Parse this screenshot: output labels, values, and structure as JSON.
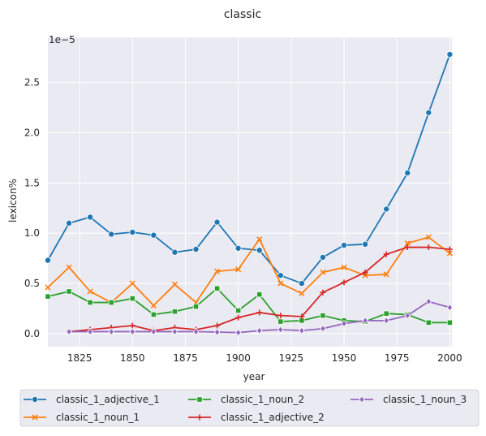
{
  "chart_data": {
    "type": "line",
    "title": "classic",
    "xlabel": "year",
    "ylabel": "lexicon%",
    "y_scale_label": "1e−5",
    "xlim": [
      1810,
      2001
    ],
    "ylim": [
      -0.13,
      2.95
    ],
    "x_ticks": [
      1825,
      1850,
      1875,
      1900,
      1925,
      1950,
      1975,
      2000
    ],
    "y_ticks": [
      0.0,
      0.5,
      1.0,
      1.5,
      2.0,
      2.5
    ],
    "y_tick_labels": [
      "0.0",
      "0.5",
      "1.0",
      "1.5",
      "2.0",
      "2.5"
    ],
    "grid": true,
    "legend_placement": "below",
    "series": [
      {
        "name": "classic_1_adjective_1",
        "color": "#1f77b4",
        "marker": "circle",
        "x": [
          1810,
          1820,
          1830,
          1840,
          1850,
          1860,
          1870,
          1880,
          1890,
          1900,
          1910,
          1920,
          1930,
          1940,
          1950,
          1960,
          1970,
          1980,
          1990,
          2000
        ],
        "values": [
          0.73,
          1.1,
          1.16,
          0.99,
          1.01,
          0.98,
          0.81,
          0.84,
          1.11,
          0.85,
          0.83,
          0.58,
          0.5,
          0.76,
          0.88,
          0.89,
          1.24,
          1.6,
          2.2,
          2.78
        ]
      },
      {
        "name": "classic_1_noun_1",
        "color": "#ff7f0e",
        "marker": "x",
        "x": [
          1810,
          1820,
          1830,
          1840,
          1850,
          1860,
          1870,
          1880,
          1890,
          1900,
          1910,
          1920,
          1930,
          1940,
          1950,
          1960,
          1970,
          1980,
          1990,
          2000
        ],
        "values": [
          0.46,
          0.66,
          0.42,
          0.31,
          0.5,
          0.28,
          0.49,
          0.31,
          0.62,
          0.64,
          0.94,
          0.5,
          0.4,
          0.61,
          0.66,
          0.58,
          0.59,
          0.9,
          0.96,
          0.8
        ]
      },
      {
        "name": "classic_1_noun_2",
        "color": "#2ca02c",
        "marker": "square",
        "x": [
          1810,
          1820,
          1830,
          1840,
          1850,
          1860,
          1870,
          1880,
          1890,
          1900,
          1910,
          1920,
          1930,
          1940,
          1950,
          1960,
          1970,
          1980,
          1990,
          2000
        ],
        "values": [
          0.37,
          0.42,
          0.31,
          0.31,
          0.35,
          0.19,
          0.22,
          0.27,
          0.45,
          0.23,
          0.39,
          0.12,
          0.13,
          0.18,
          0.13,
          0.12,
          0.2,
          0.19,
          0.11,
          0.11
        ]
      },
      {
        "name": "classic_1_adjective_2",
        "color": "#d62728",
        "marker": "plus",
        "x": [
          1820,
          1830,
          1840,
          1850,
          1860,
          1870,
          1880,
          1890,
          1900,
          1910,
          1920,
          1930,
          1940,
          1950,
          1960,
          1970,
          1980,
          1990,
          2000
        ],
        "values": [
          0.02,
          0.04,
          0.06,
          0.08,
          0.03,
          0.06,
          0.04,
          0.08,
          0.16,
          0.21,
          0.18,
          0.17,
          0.41,
          0.51,
          0.61,
          0.79,
          0.86,
          0.86,
          0.84
        ]
      },
      {
        "name": "classic_1_noun_3",
        "color": "#9467bd",
        "marker": "diamond",
        "x": [
          1820,
          1830,
          1840,
          1850,
          1860,
          1870,
          1880,
          1890,
          1900,
          1910,
          1920,
          1930,
          1940,
          1950,
          1960,
          1970,
          1980,
          1990,
          2000
        ],
        "values": [
          0.02,
          0.02,
          0.02,
          0.02,
          0.02,
          0.02,
          0.02,
          0.015,
          0.01,
          0.03,
          0.04,
          0.03,
          0.05,
          0.1,
          0.13,
          0.13,
          0.18,
          0.32,
          0.26
        ]
      }
    ]
  }
}
